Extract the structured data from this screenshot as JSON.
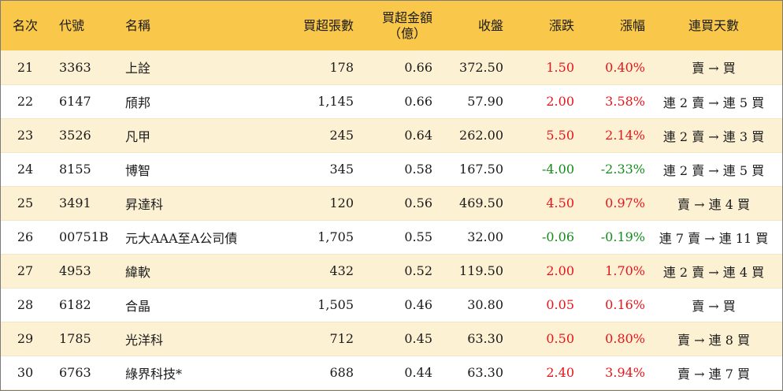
{
  "headers": {
    "rank": "名次",
    "code": "代號",
    "name": "名稱",
    "volume": "買超張數",
    "amount_line1": "買超金額",
    "amount_line2": "（億）",
    "close": "收盤",
    "change": "漲跌",
    "pct": "漲幅",
    "days": "連買天數"
  },
  "colors": {
    "header_bg": "#f9c84a",
    "row_alt_bg": "#fdf1d4",
    "up": "#e8141b",
    "down": "#148c1c"
  },
  "rows": [
    {
      "rank": "21",
      "code": "3363",
      "name": "上詮",
      "volume": "178",
      "amount": "0.66",
      "close": "372.50",
      "change": "1.50",
      "pct": "0.40%",
      "days": "賣 → 買",
      "dir": "up"
    },
    {
      "rank": "22",
      "code": "6147",
      "name": "頎邦",
      "volume": "1,145",
      "amount": "0.66",
      "close": "57.90",
      "change": "2.00",
      "pct": "3.58%",
      "days": "連 2 賣 → 連 5 買",
      "dir": "up"
    },
    {
      "rank": "23",
      "code": "3526",
      "name": "凡甲",
      "volume": "245",
      "amount": "0.64",
      "close": "262.00",
      "change": "5.50",
      "pct": "2.14%",
      "days": "連 2 賣 → 連 3 買",
      "dir": "up"
    },
    {
      "rank": "24",
      "code": "8155",
      "name": "博智",
      "volume": "345",
      "amount": "0.58",
      "close": "167.50",
      "change": "-4.00",
      "pct": "-2.33%",
      "days": "連 2 賣 → 連 5 買",
      "dir": "down"
    },
    {
      "rank": "25",
      "code": "3491",
      "name": "昇達科",
      "volume": "120",
      "amount": "0.56",
      "close": "469.50",
      "change": "4.50",
      "pct": "0.97%",
      "days": "賣 → 連 4 買",
      "dir": "up"
    },
    {
      "rank": "26",
      "code": "00751B",
      "name": "元大AAA至A公司債",
      "volume": "1,705",
      "amount": "0.55",
      "close": "32.00",
      "change": "-0.06",
      "pct": "-0.19%",
      "days": "連 7 賣 → 連 11 買",
      "dir": "down"
    },
    {
      "rank": "27",
      "code": "4953",
      "name": "緯軟",
      "volume": "432",
      "amount": "0.52",
      "close": "119.50",
      "change": "2.00",
      "pct": "1.70%",
      "days": "連 2 賣 → 連 4 買",
      "dir": "up"
    },
    {
      "rank": "28",
      "code": "6182",
      "name": "合晶",
      "volume": "1,505",
      "amount": "0.46",
      "close": "30.80",
      "change": "0.05",
      "pct": "0.16%",
      "days": "賣 → 買",
      "dir": "up"
    },
    {
      "rank": "29",
      "code": "1785",
      "name": "光洋科",
      "volume": "712",
      "amount": "0.45",
      "close": "63.30",
      "change": "0.50",
      "pct": "0.80%",
      "days": "賣 → 連 8 買",
      "dir": "up"
    },
    {
      "rank": "30",
      "code": "6763",
      "name": "綠界科技*",
      "volume": "688",
      "amount": "0.44",
      "close": "63.30",
      "change": "2.40",
      "pct": "3.94%",
      "days": "賣 → 連 7 買",
      "dir": "up"
    }
  ]
}
